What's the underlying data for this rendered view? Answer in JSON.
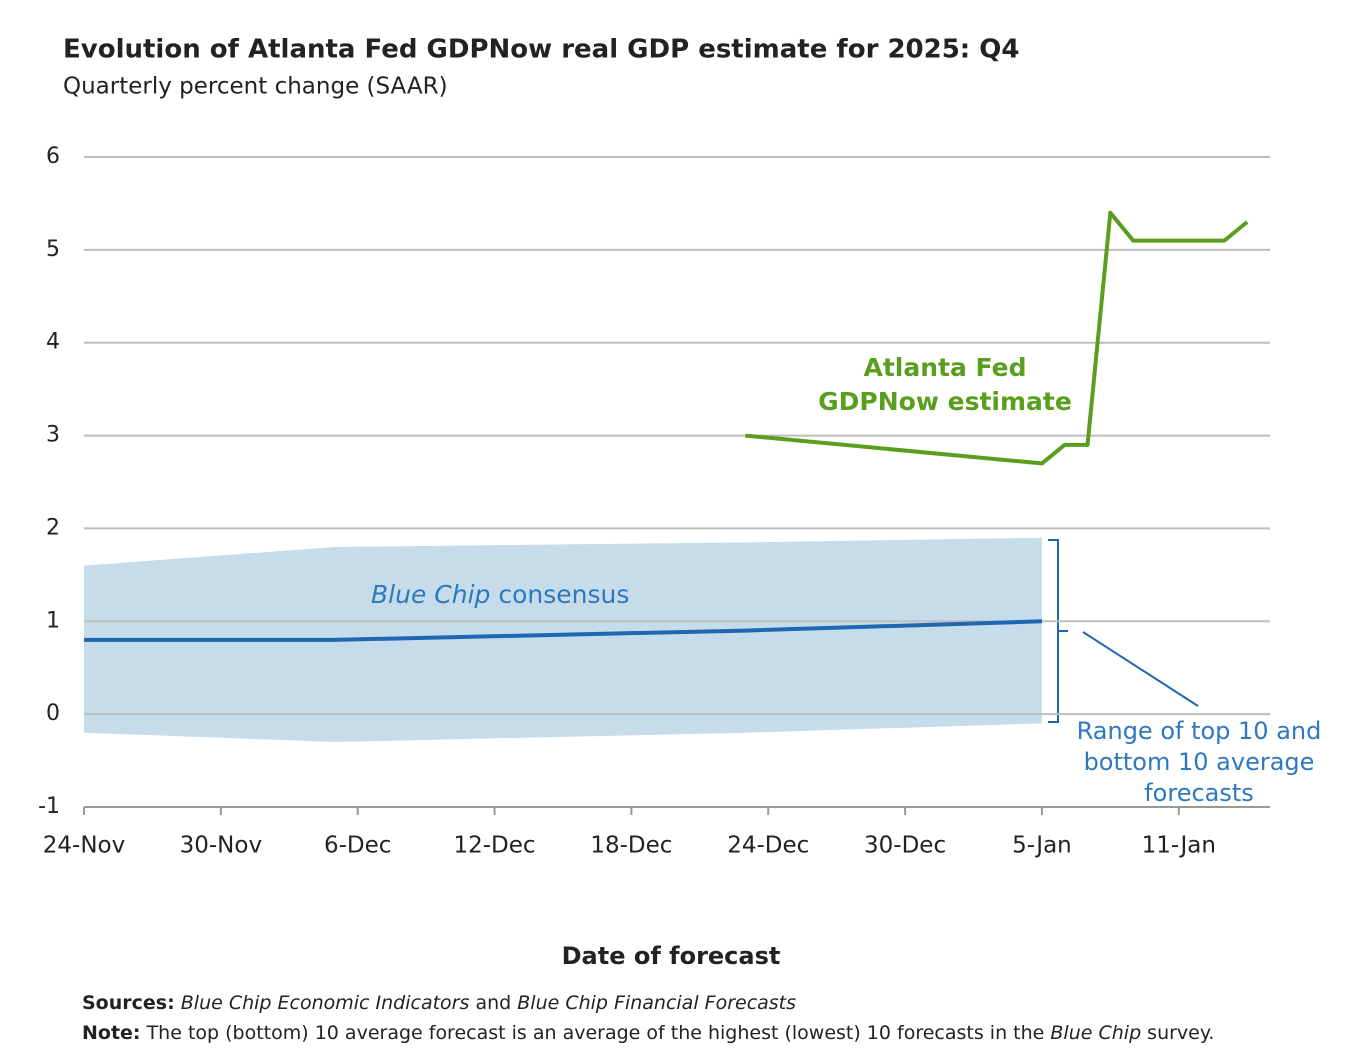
{
  "chart_data": {
    "type": "line",
    "title": "Evolution of Atlanta Fed GDPNow real GDP estimate for 2025: Q4",
    "subtitle": "Quarterly percent change (SAAR)",
    "x_label": "Date of forecast",
    "x": [
      "24-Nov",
      "5-Dec",
      "23-Dec",
      "5-Jan",
      "6-Jan",
      "7-Jan",
      "8-Jan",
      "9-Jan",
      "13-Jan",
      "14-Jan"
    ],
    "xlim": [
      "24-Nov",
      "15-Jan"
    ],
    "xticks": [
      "24-Nov",
      "30-Nov",
      "6-Dec",
      "12-Dec",
      "18-Dec",
      "24-Dec",
      "30-Dec",
      "5-Jan",
      "11-Jan"
    ],
    "ylim": [
      -1,
      6
    ],
    "yticks": [
      -1,
      0,
      1,
      2,
      3,
      4,
      5,
      6
    ],
    "grid": true,
    "band": {
      "name": [
        "Range of top 10 and",
        "bottom 10 average",
        "forecasts"
      ],
      "color": "#c6dcea",
      "high": [
        1.6,
        1.8,
        1.85,
        1.9,
        null,
        null,
        null,
        null,
        null,
        null
      ],
      "low": [
        -0.2,
        -0.3,
        -0.2,
        -0.1,
        null,
        null,
        null,
        null,
        null,
        null
      ]
    },
    "series": [
      {
        "name": "Blue Chip consensus",
        "color": "#1f67b1",
        "values": [
          0.8,
          0.8,
          0.9,
          1.0,
          null,
          null,
          null,
          null,
          null,
          null
        ]
      },
      {
        "name": [
          "Atlanta Fed",
          "GDPNow estimate"
        ],
        "color": "#5a9e1e",
        "values": [
          null,
          null,
          3.0,
          2.7,
          2.9,
          2.9,
          5.4,
          5.1,
          5.1,
          5.3
        ]
      }
    ]
  },
  "footer": {
    "sources_label": "Sources:",
    "sources_parts": [
      "Blue Chip Economic Indicators",
      "and",
      "Blue Chip Financial Forecasts"
    ],
    "note_label": "Note:",
    "note_parts": [
      "The top (bottom) 10 average forecast is an average of the highest (lowest) 10 forecasts in the",
      "Blue Chip",
      "survey."
    ]
  }
}
